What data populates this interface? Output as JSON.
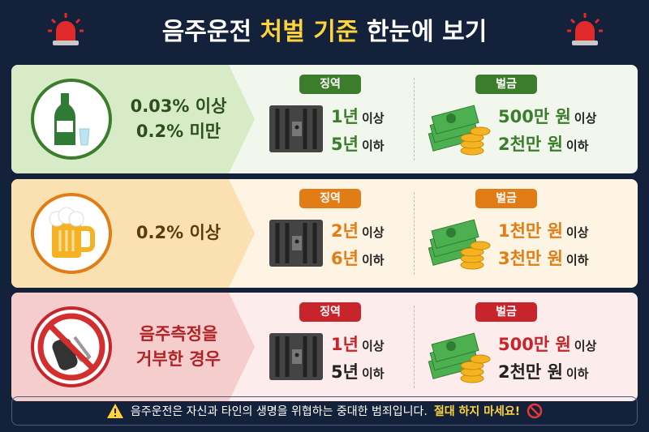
{
  "header": {
    "title_start": "음주운전",
    "title_highlight": "처벌 기준",
    "title_end": "한눈에 보기"
  },
  "rows": [
    {
      "condition": [
        "0.03% 이상",
        "0.2% 미만"
      ],
      "jail_label": "징역",
      "jail": [
        {
          "amount": "1년",
          "suffix": "이상"
        },
        {
          "amount": "5년",
          "suffix": "이하"
        }
      ],
      "fine_label": "벌금",
      "fine": [
        {
          "amount": "500만 원",
          "suffix": "이상"
        },
        {
          "amount": "2천만 원",
          "suffix": "이하"
        }
      ]
    },
    {
      "condition": [
        "0.2% 이상"
      ],
      "jail_label": "징역",
      "jail": [
        {
          "amount": "2년",
          "suffix": "이상"
        },
        {
          "amount": "6년",
          "suffix": "이하"
        }
      ],
      "fine_label": "벌금",
      "fine": [
        {
          "amount": "1천만 원",
          "suffix": "이상"
        },
        {
          "amount": "3천만 원",
          "suffix": "이하"
        }
      ]
    },
    {
      "condition": [
        "음주측정을",
        "거부한 경우"
      ],
      "jail_label": "징역",
      "jail": [
        {
          "amount": "1년",
          "suffix": "이상"
        },
        {
          "amount": "5년",
          "suffix": "이하"
        }
      ],
      "fine_label": "벌금",
      "fine": [
        {
          "amount": "500만 원",
          "suffix": "이상"
        },
        {
          "amount": "2천만 원",
          "suffix": "이하"
        }
      ]
    }
  ],
  "footer": {
    "message": "음주운전은 자신과 타인의 생명을 위협하는 중대한 범죄입니다.",
    "warning": "절대 하지 마세요!"
  }
}
